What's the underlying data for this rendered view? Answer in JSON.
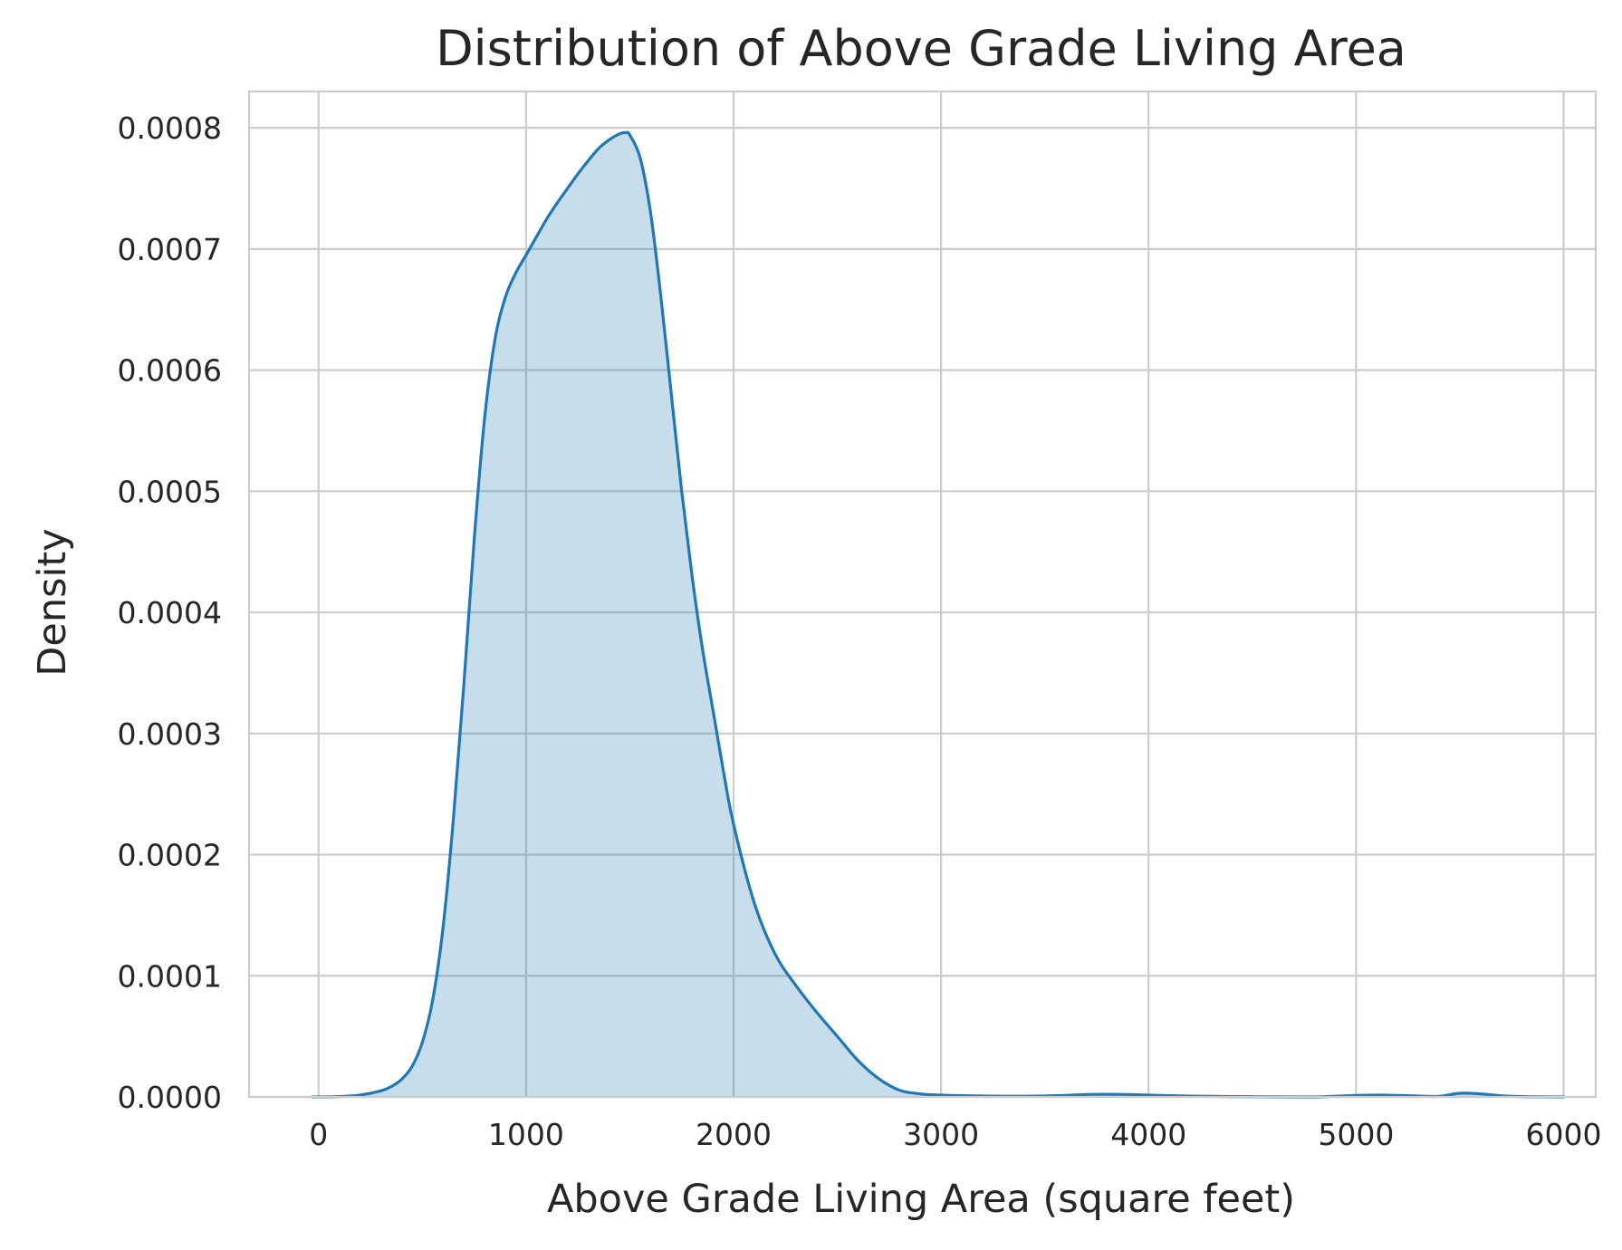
{
  "chart_data": {
    "type": "area",
    "title": "Distribution of Above Grade Living Area",
    "xlabel": "Above Grade Living Area (square feet)",
    "ylabel": "Density",
    "xlim": [
      -335,
      6155
    ],
    "ylim": [
      0,
      0.00083
    ],
    "xticks": [
      0,
      1000,
      2000,
      3000,
      4000,
      5000,
      6000
    ],
    "xtick_labels": [
      "0",
      "1000",
      "2000",
      "3000",
      "4000",
      "5000",
      "6000"
    ],
    "yticks": [
      0,
      0.0001,
      0.0002,
      0.0003,
      0.0004,
      0.0005,
      0.0006,
      0.0007,
      0.0008
    ],
    "ytick_labels": [
      "0.0000",
      "0.0001",
      "0.0002",
      "0.0003",
      "0.0004",
      "0.0005",
      "0.0006",
      "0.0007",
      "0.0008"
    ],
    "grid": true,
    "legend": "none",
    "series": [
      {
        "x": [
          -30,
          100,
          200,
          300,
          350,
          400,
          450,
          500,
          550,
          600,
          650,
          700,
          750,
          800,
          850,
          900,
          950,
          1000,
          1050,
          1100,
          1150,
          1200,
          1250,
          1300,
          1350,
          1400,
          1450,
          1480,
          1500,
          1550,
          1600,
          1650,
          1700,
          1750,
          1800,
          1850,
          1900,
          1950,
          2000,
          2100,
          2200,
          2300,
          2400,
          2500,
          2600,
          2700,
          2800,
          2900,
          3000,
          3100,
          3200,
          3300,
          3400,
          3500,
          3600,
          3700,
          3800,
          3900,
          4000,
          4100,
          4200,
          4300,
          4400,
          4500,
          4600,
          4700,
          4800,
          4900,
          5000,
          5100,
          5200,
          5300,
          5400,
          5500,
          5600,
          5700,
          5800,
          5900,
          6000
        ],
        "values": [
          0,
          3e-07,
          1.5e-06,
          5e-06,
          8.5e-06,
          1.45e-05,
          2.5e-05,
          4.5e-05,
          8e-05,
          0.00014,
          0.00023,
          0.00034,
          0.00046,
          0.00056,
          0.000625,
          0.00066,
          0.00068,
          0.000695,
          0.00071,
          0.000725,
          0.000738,
          0.00075,
          0.000762,
          0.000773,
          0.000783,
          0.00079,
          0.000795,
          0.000796,
          0.000794,
          0.000775,
          0.00073,
          0.00066,
          0.00058,
          0.0005,
          0.00043,
          0.00037,
          0.00032,
          0.00027,
          0.000225,
          0.00016,
          0.000118,
          9.2e-05,
          7e-05,
          5e-05,
          3e-05,
          1.5e-05,
          5.5e-06,
          2.5e-06,
          1.5e-06,
          1e-06,
          8e-07,
          6e-07,
          6e-07,
          8e-07,
          1.2e-06,
          2e-06,
          2.2e-06,
          2e-06,
          1.5e-06,
          1e-06,
          7e-07,
          5e-07,
          3e-07,
          2e-07,
          1e-07,
          0,
          0,
          6e-07,
          1.2e-06,
          1.5e-06,
          1.2e-06,
          8e-07,
          5e-07,
          3e-06,
          2.5e-06,
          1e-06,
          3e-07,
          1e-07,
          0
        ],
        "color": "#1f77b4",
        "fill_opacity": 0.25
      }
    ]
  }
}
